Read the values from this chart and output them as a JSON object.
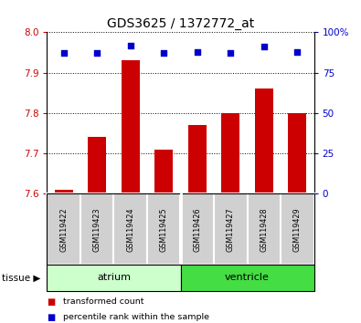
{
  "title": "GDS3625 / 1372772_at",
  "samples": [
    "GSM119422",
    "GSM119423",
    "GSM119424",
    "GSM119425",
    "GSM119426",
    "GSM119427",
    "GSM119428",
    "GSM119429"
  ],
  "transformed_counts": [
    7.61,
    7.74,
    7.93,
    7.71,
    7.77,
    7.8,
    7.86,
    7.8
  ],
  "percentile_ranks": [
    87,
    87,
    92,
    87,
    88,
    87,
    91,
    88
  ],
  "ylim_left": [
    7.6,
    8.0
  ],
  "ylim_right": [
    0,
    100
  ],
  "yticks_left": [
    7.6,
    7.7,
    7.8,
    7.9,
    8.0
  ],
  "yticks_right": [
    0,
    25,
    50,
    75,
    100
  ],
  "bar_color": "#cc0000",
  "dot_color": "#0000cc",
  "baseline": 7.6,
  "tissues": [
    {
      "label": "atrium",
      "start": 0,
      "end": 4,
      "color": "#ccffcc"
    },
    {
      "label": "ventricle",
      "start": 4,
      "end": 8,
      "color": "#44dd44"
    }
  ],
  "tissue_label": "tissue",
  "legend_entries": [
    {
      "label": "transformed count",
      "color": "#cc0000"
    },
    {
      "label": "percentile rank within the sample",
      "color": "#0000cc"
    }
  ],
  "title_fontsize": 10,
  "tick_fontsize": 7.5,
  "label_fontsize": 6.5,
  "bar_width": 0.55
}
